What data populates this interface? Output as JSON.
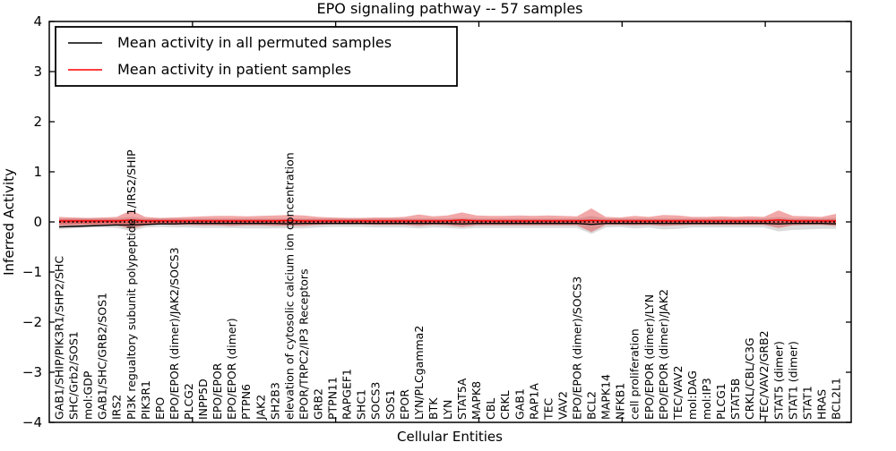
{
  "chart_data": {
    "type": "line",
    "title": "EPO signaling pathway -- 57 samples",
    "xlabel": "Cellular Entities",
    "ylabel": "Inferred Activity",
    "ylim": [
      -4,
      4
    ],
    "xlim": [
      0,
      56
    ],
    "grid": false,
    "yticks": {
      "values": [
        4,
        3,
        2,
        1,
        0,
        -1,
        -2,
        -3,
        -4
      ],
      "labels": [
        "4",
        "3",
        "2",
        "1",
        "0",
        "−1",
        "−2",
        "−3",
        "−4"
      ]
    },
    "xticks_numeric": [
      10,
      20,
      30,
      40,
      50
    ],
    "legend": {
      "position": "upper left",
      "items": [
        {
          "label": "Mean activity in all permuted samples",
          "color": "#000000"
        },
        {
          "label": "Mean activity in patient samples",
          "color": "#ff0000"
        }
      ]
    },
    "entities": [
      "GAB1/SHIP/PIK3R1/SHP2/SHC",
      "SHC/Grb2/SOS1",
      "mol:GDP",
      "GAB1/SHC/GRB2/SOS1",
      "IRS2",
      "PI3K regualtory subunit polypeptide 1/IRS2/SHIP",
      "PIK3R1",
      "EPO",
      "EPO/EPOR (dimer)/JAK2/SOCS3",
      "PLCG2",
      "INPP5D",
      "EPO/EPOR",
      "EPO/EPOR (dimer)",
      "PTPN6",
      "JAK2",
      "SH2B3",
      "elevation of cytosolic calcium ion concentration",
      "EPOR/TRPC2/IP3 Receptors",
      "GRB2",
      "PTPN11",
      "RAPGEF1",
      "SHC1",
      "SOCS3",
      "SOS1",
      "EPOR",
      "LYN/PLCgamma2",
      "BTK",
      "LYN",
      "STAT5A",
      "MAPK8",
      "CBL",
      "CRKL",
      "GAB1",
      "RAP1A",
      "TEC",
      "VAV2",
      "EPO/EPOR (dimer)/SOCS3",
      "BCL2",
      "MAPK14",
      "NFKB1",
      "cell proliferation",
      "EPO/EPOR (dimer)/LYN",
      "EPO/EPOR (dimer)/JAK2",
      "TEC/VAV2",
      "mol:DAG",
      "mol:IP3",
      "PLCG1",
      "STAT5B",
      "CRKL/CBL/C3G",
      "TEC/VAV2/GRB2",
      "STAT5 (dimer)",
      "STAT1 (dimer)",
      "STAT1",
      "HRAS",
      "BCL2L1"
    ],
    "series": [
      {
        "name": "permuted_mean",
        "color": "#000000",
        "style": "solid",
        "values": [
          -0.1,
          -0.09,
          -0.08,
          -0.07,
          -0.06,
          -0.06,
          -0.05,
          -0.04,
          -0.04,
          -0.03,
          -0.03,
          -0.03,
          -0.03,
          -0.03,
          -0.03,
          -0.03,
          -0.04,
          -0.03,
          -0.03,
          -0.03,
          -0.03,
          -0.03,
          -0.03,
          -0.03,
          -0.03,
          -0.03,
          -0.03,
          -0.03,
          -0.04,
          -0.03,
          -0.03,
          -0.03,
          -0.03,
          -0.03,
          -0.03,
          -0.03,
          -0.03,
          -0.05,
          -0.03,
          -0.03,
          -0.03,
          -0.03,
          -0.03,
          -0.03,
          -0.03,
          -0.03,
          -0.03,
          -0.03,
          -0.03,
          -0.03,
          -0.04,
          -0.03,
          -0.03,
          -0.03,
          -0.04
        ]
      },
      {
        "name": "patient_mean",
        "color": "#ff0000",
        "style": "solid",
        "values": [
          0.02,
          0.02,
          0.02,
          0.02,
          0.02,
          0.04,
          0.02,
          0.02,
          0.02,
          0.02,
          0.02,
          0.02,
          0.02,
          0.02,
          0.02,
          0.02,
          0.03,
          0.02,
          0.02,
          0.02,
          0.02,
          0.02,
          0.02,
          0.02,
          0.02,
          0.02,
          0.02,
          0.02,
          0.04,
          0.02,
          0.02,
          0.02,
          0.02,
          0.02,
          0.02,
          0.02,
          0.02,
          0.03,
          0.02,
          0.02,
          0.02,
          0.02,
          0.02,
          0.02,
          0.02,
          0.02,
          0.02,
          0.02,
          0.02,
          0.02,
          0.04,
          0.02,
          0.02,
          0.02,
          0.02
        ]
      },
      {
        "name": "zero_reference",
        "color": "#000000",
        "style": "dotted",
        "value": 0
      }
    ],
    "bands": [
      {
        "name": "permuted_band",
        "color": "#b8b8b8",
        "opacity": 0.5,
        "upper": [
          0.07,
          0.07,
          0.07,
          0.07,
          0.07,
          0.1,
          0.07,
          0.07,
          0.07,
          0.07,
          0.07,
          0.07,
          0.07,
          0.07,
          0.07,
          0.07,
          0.07,
          0.07,
          0.07,
          0.07,
          0.07,
          0.07,
          0.07,
          0.07,
          0.07,
          0.07,
          0.07,
          0.07,
          0.08,
          0.07,
          0.07,
          0.07,
          0.07,
          0.07,
          0.07,
          0.07,
          0.07,
          0.12,
          0.07,
          0.07,
          0.07,
          0.07,
          0.07,
          0.07,
          0.07,
          0.07,
          0.07,
          0.07,
          0.07,
          0.07,
          0.1,
          0.07,
          0.07,
          0.07,
          0.08
        ],
        "lower": [
          -0.15,
          -0.13,
          -0.11,
          -0.11,
          -0.12,
          -0.18,
          -0.11,
          -0.1,
          -0.11,
          -0.11,
          -0.12,
          -0.12,
          -0.12,
          -0.13,
          -0.13,
          -0.13,
          -0.13,
          -0.13,
          -0.11,
          -0.1,
          -0.1,
          -0.1,
          -0.11,
          -0.11,
          -0.11,
          -0.13,
          -0.11,
          -0.12,
          -0.14,
          -0.12,
          -0.12,
          -0.12,
          -0.12,
          -0.12,
          -0.12,
          -0.12,
          -0.12,
          -0.24,
          -0.11,
          -0.1,
          -0.13,
          -0.11,
          -0.15,
          -0.14,
          -0.11,
          -0.11,
          -0.11,
          -0.11,
          -0.11,
          -0.11,
          -0.19,
          -0.16,
          -0.15,
          -0.14,
          -0.14
        ]
      },
      {
        "name": "patient_band",
        "color": "#e03030",
        "opacity": 0.42,
        "upper": [
          0.1,
          0.09,
          0.08,
          0.09,
          0.1,
          0.23,
          0.1,
          0.08,
          0.09,
          0.1,
          0.11,
          0.12,
          0.12,
          0.11,
          0.12,
          0.13,
          0.14,
          0.13,
          0.1,
          0.09,
          0.08,
          0.08,
          0.09,
          0.09,
          0.1,
          0.15,
          0.11,
          0.13,
          0.19,
          0.13,
          0.12,
          0.12,
          0.13,
          0.12,
          0.13,
          0.12,
          0.11,
          0.27,
          0.1,
          0.09,
          0.12,
          0.1,
          0.14,
          0.13,
          0.1,
          0.1,
          0.11,
          0.1,
          0.11,
          0.1,
          0.23,
          0.12,
          0.11,
          0.1,
          0.16
        ],
        "lower": [
          -0.08,
          -0.07,
          -0.06,
          -0.06,
          -0.07,
          -0.14,
          -0.07,
          -0.05,
          -0.06,
          -0.06,
          -0.07,
          -0.07,
          -0.08,
          -0.07,
          -0.07,
          -0.08,
          -0.08,
          -0.08,
          -0.06,
          -0.05,
          -0.05,
          -0.05,
          -0.06,
          -0.06,
          -0.06,
          -0.08,
          -0.06,
          -0.07,
          -0.1,
          -0.07,
          -0.07,
          -0.07,
          -0.07,
          -0.07,
          -0.07,
          -0.07,
          -0.07,
          -0.2,
          -0.06,
          -0.06,
          -0.07,
          -0.06,
          -0.08,
          -0.07,
          -0.06,
          -0.06,
          -0.06,
          -0.06,
          -0.06,
          -0.06,
          -0.12,
          -0.07,
          -0.06,
          -0.06,
          -0.08
        ]
      },
      {
        "name": "patient_inner_band",
        "color": "#e03030",
        "opacity": 0.42,
        "upper_const": 0.05,
        "lower_const": -0.04
      }
    ]
  }
}
